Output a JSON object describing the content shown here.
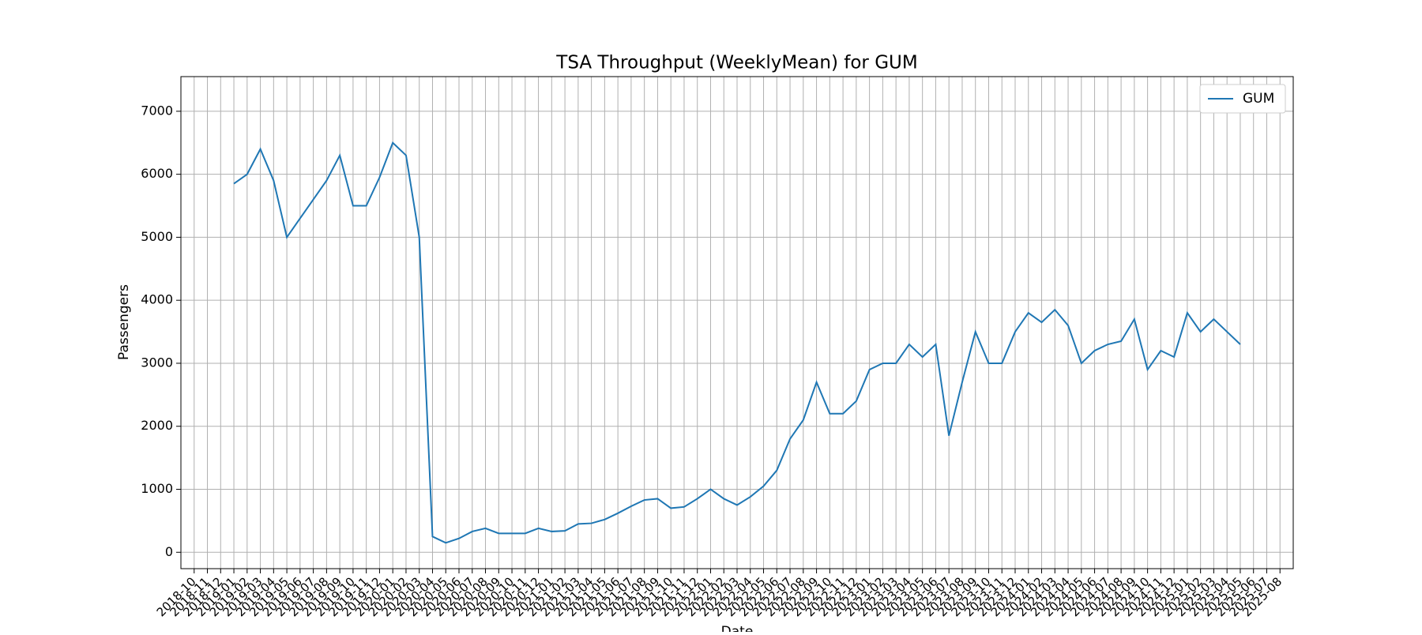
{
  "chart_data": {
    "type": "line",
    "title": "TSA Throughput (WeeklyMean) for GUM",
    "x_label": "Date",
    "y_label": "Passengers",
    "x": [
      "2019-01",
      "2019-02",
      "2019-03",
      "2019-04",
      "2019-05",
      "2019-06",
      "2019-07",
      "2019-08",
      "2019-09",
      "2019-10",
      "2019-11",
      "2019-12",
      "2020-01",
      "2020-02",
      "2020-03",
      "2020-04",
      "2020-05",
      "2020-06",
      "2020-07",
      "2020-08",
      "2020-09",
      "2020-10",
      "2020-11",
      "2020-12",
      "2021-01",
      "2021-02",
      "2021-03",
      "2021-04",
      "2021-05",
      "2021-06",
      "2021-07",
      "2021-08",
      "2021-09",
      "2021-10",
      "2021-11",
      "2021-12",
      "2022-01",
      "2022-02",
      "2022-03",
      "2022-04",
      "2022-05",
      "2022-06",
      "2022-07",
      "2022-08",
      "2022-09",
      "2022-10",
      "2022-11",
      "2022-12",
      "2023-01",
      "2023-02",
      "2023-03",
      "2023-04",
      "2023-05",
      "2023-06",
      "2023-07",
      "2023-08",
      "2023-09",
      "2023-10",
      "2023-11",
      "2023-12",
      "2024-01",
      "2024-02",
      "2024-03",
      "2024-04",
      "2024-05",
      "2024-06",
      "2024-07",
      "2024-08",
      "2024-09",
      "2024-10",
      "2024-11",
      "2024-12",
      "2025-01",
      "2025-02",
      "2025-03",
      "2025-04",
      "2025-05"
    ],
    "series": [
      {
        "name": "GUM",
        "color": "#1f77b4",
        "values": [
          5850,
          6000,
          6400,
          5900,
          5000,
          5300,
          5600,
          5900,
          6300,
          5500,
          5500,
          5950,
          6500,
          6300,
          5000,
          250,
          150,
          220,
          330,
          380,
          300,
          300,
          300,
          380,
          330,
          340,
          450,
          460,
          520,
          620,
          730,
          830,
          850,
          700,
          720,
          850,
          1000,
          850,
          750,
          880,
          1050,
          1300,
          1800,
          2100,
          2700,
          2200,
          2200,
          2400,
          2900,
          3000,
          3000,
          3300,
          3100,
          3300,
          1850,
          2700,
          3500,
          3000,
          3000,
          3500,
          3800,
          3650,
          3850,
          3600,
          3000,
          3200,
          3300,
          3350,
          3700,
          2900,
          3200,
          3100,
          3800,
          3500,
          3700,
          3500,
          3300
        ]
      }
    ],
    "xlim": [
      "2018-09",
      "2025-09"
    ],
    "xticks": [
      "2018-10",
      "2018-11",
      "2018-12",
      "2019-01",
      "2019-02",
      "2019-03",
      "2019-04",
      "2019-05",
      "2019-06",
      "2019-07",
      "2019-08",
      "2019-09",
      "2019-10",
      "2019-11",
      "2019-12",
      "2020-01",
      "2020-02",
      "2020-03",
      "2020-04",
      "2020-05",
      "2020-06",
      "2020-07",
      "2020-08",
      "2020-09",
      "2020-10",
      "2020-11",
      "2020-12",
      "2021-01",
      "2021-02",
      "2021-03",
      "2021-04",
      "2021-05",
      "2021-06",
      "2021-07",
      "2021-08",
      "2021-09",
      "2021-10",
      "2021-11",
      "2021-12",
      "2022-01",
      "2022-02",
      "2022-03",
      "2022-04",
      "2022-05",
      "2022-06",
      "2022-07",
      "2022-08",
      "2022-09",
      "2022-10",
      "2022-11",
      "2022-12",
      "2023-01",
      "2023-02",
      "2023-03",
      "2023-04",
      "2023-05",
      "2023-06",
      "2023-07",
      "2023-08",
      "2023-09",
      "2023-10",
      "2023-11",
      "2023-12",
      "2024-01",
      "2024-02",
      "2024-03",
      "2024-04",
      "2024-05",
      "2024-06",
      "2024-07",
      "2024-08",
      "2024-09",
      "2024-10",
      "2024-11",
      "2024-12",
      "2025-01",
      "2025-02",
      "2025-03",
      "2025-04",
      "2025-05",
      "2025-06",
      "2025-07",
      "2025-08"
    ],
    "ylim": [
      -260,
      7550
    ],
    "yticks": [
      0,
      1000,
      2000,
      3000,
      4000,
      5000,
      6000,
      7000
    ],
    "grid": true,
    "legend": "upper right"
  }
}
